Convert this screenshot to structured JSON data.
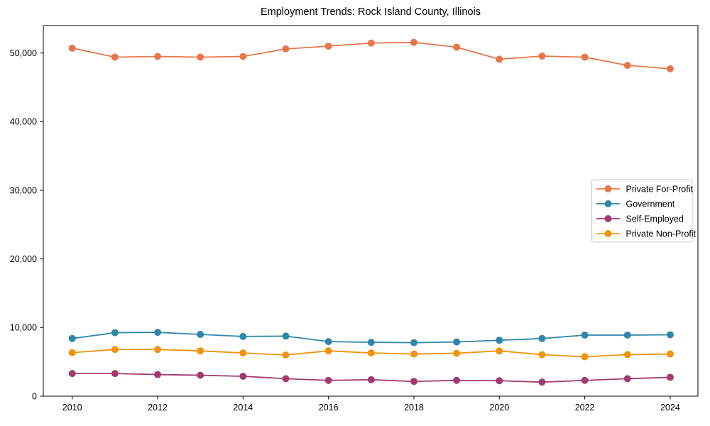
{
  "chart_data": {
    "type": "line",
    "title": "Employment Trends: Rock Island County, Illinois",
    "xlabel": "",
    "ylabel": "",
    "grid": false,
    "legend_position": "center-right",
    "x": [
      2010,
      2011,
      2012,
      2013,
      2014,
      2015,
      2016,
      2017,
      2018,
      2019,
      2020,
      2021,
      2022,
      2023,
      2024
    ],
    "xticks": [
      {
        "value": 2010,
        "label": "2010"
      },
      {
        "value": 2012,
        "label": "2012"
      },
      {
        "value": 2014,
        "label": "2014"
      },
      {
        "value": 2016,
        "label": "2016"
      },
      {
        "value": 2018,
        "label": "2018"
      },
      {
        "value": 2020,
        "label": "2020"
      },
      {
        "value": 2022,
        "label": "2022"
      },
      {
        "value": 2024,
        "label": "2024"
      }
    ],
    "yticks": [
      {
        "value": 0,
        "label": "0"
      },
      {
        "value": 10000,
        "label": "10,000"
      },
      {
        "value": 20000,
        "label": "20,000"
      },
      {
        "value": 30000,
        "label": "30,000"
      },
      {
        "value": 40000,
        "label": "40,000"
      },
      {
        "value": 50000,
        "label": "50,000"
      }
    ],
    "ylim": [
      0,
      54000
    ],
    "series": [
      {
        "name": "Private For-Profit",
        "color": "#E8764A",
        "values": [
          50700,
          49400,
          49500,
          49400,
          49500,
          50600,
          51000,
          51450,
          51550,
          50850,
          49100,
          49550,
          49400,
          48200,
          47700
        ]
      },
      {
        "name": "Government",
        "color": "#2F86A8",
        "values": [
          8400,
          9250,
          9300,
          9000,
          8700,
          8750,
          7950,
          7850,
          7800,
          7900,
          8150,
          8400,
          8900,
          8900,
          8950
        ]
      },
      {
        "name": "Self-Employed",
        "color": "#A23B72",
        "values": [
          3300,
          3300,
          3150,
          3050,
          2900,
          2550,
          2300,
          2400,
          2150,
          2300,
          2250,
          2050,
          2300,
          2550,
          2750
        ]
      },
      {
        "name": "Private Non-Profit",
        "color": "#F0940A",
        "values": [
          6350,
          6800,
          6800,
          6600,
          6300,
          6000,
          6600,
          6300,
          6150,
          6250,
          6600,
          6050,
          5750,
          6050,
          6150
        ]
      }
    ]
  }
}
